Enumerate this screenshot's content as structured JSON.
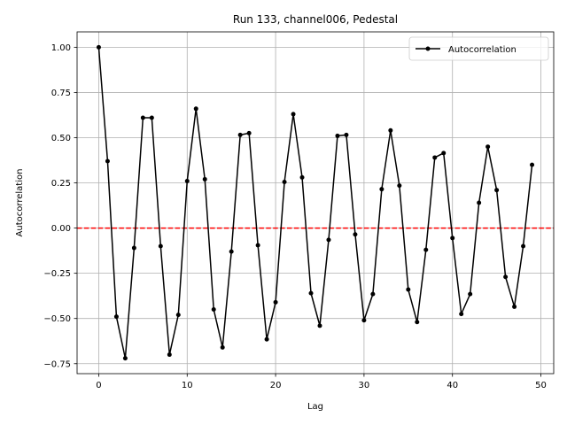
{
  "chart_data": {
    "type": "line",
    "title": "Run 133, channel006, Pedestal",
    "xlabel": "Lag",
    "ylabel": "Autocorrelation",
    "xlim": [
      -2.45,
      51.45
    ],
    "ylim": [
      -0.805,
      1.085
    ],
    "xticks": [
      0,
      10,
      20,
      30,
      40,
      50
    ],
    "yticks": [
      -0.75,
      -0.5,
      -0.25,
      0.0,
      0.25,
      0.5,
      0.75,
      1.0
    ],
    "ytick_labels": [
      "−0.75",
      "−0.50",
      "−0.25",
      "0.00",
      "0.25",
      "0.50",
      "0.75",
      "1.00"
    ],
    "grid": true,
    "legend_position": "top-right",
    "zero_line": {
      "y": 0,
      "color": "#ff0000",
      "style": "dashed"
    },
    "series": [
      {
        "name": "Autocorrelation",
        "color": "#000000",
        "marker": "dot",
        "x": [
          0,
          1,
          2,
          3,
          4,
          5,
          6,
          7,
          8,
          9,
          10,
          11,
          12,
          13,
          14,
          15,
          16,
          17,
          18,
          19,
          20,
          21,
          22,
          23,
          24,
          25,
          26,
          27,
          28,
          29,
          30,
          31,
          32,
          33,
          34,
          35,
          36,
          37,
          38,
          39,
          40,
          41,
          42,
          43,
          44,
          45,
          46,
          47,
          48,
          49
        ],
        "values": [
          1.0,
          0.37,
          -0.49,
          -0.72,
          -0.11,
          0.61,
          0.61,
          -0.1,
          -0.7,
          -0.48,
          0.26,
          0.66,
          0.27,
          -0.45,
          -0.66,
          -0.13,
          0.515,
          0.525,
          -0.095,
          -0.615,
          -0.41,
          0.255,
          0.63,
          0.28,
          -0.36,
          -0.54,
          -0.065,
          0.51,
          0.515,
          -0.035,
          -0.51,
          -0.365,
          0.215,
          0.54,
          0.235,
          -0.34,
          -0.52,
          -0.12,
          0.39,
          0.415,
          -0.055,
          -0.475,
          -0.365,
          0.14,
          0.45,
          0.21,
          -0.27,
          -0.435,
          -0.1,
          0.35
        ]
      }
    ]
  }
}
